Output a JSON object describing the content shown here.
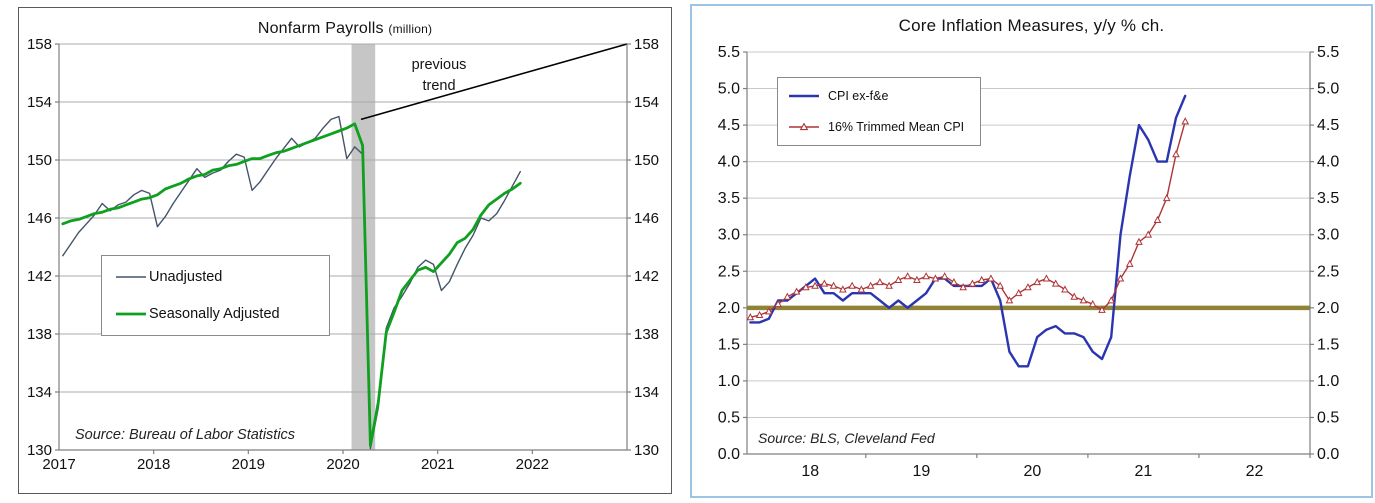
{
  "chart_data": [
    {
      "id": "nonfarm-payrolls",
      "type": "line",
      "title": "Nonfarm Payrolls",
      "title_note": "(million)",
      "source": "Source: Bureau of Labor Statistics",
      "frame_color": "#5a5a5a",
      "ylim": [
        130,
        158
      ],
      "xlim": [
        2017.0,
        2023.0
      ],
      "y_ticks": [
        {
          "v": 158,
          "label": "158"
        },
        {
          "v": 154,
          "label": "154"
        },
        {
          "v": 150,
          "label": "150"
        },
        {
          "v": 146,
          "label": "146"
        },
        {
          "v": 142,
          "label": "142"
        },
        {
          "v": 138,
          "label": "138"
        },
        {
          "v": 134,
          "label": "134"
        },
        {
          "v": 130,
          "label": "130"
        }
      ],
      "x_ticks": [
        2018,
        2019,
        2020,
        2021,
        2022
      ],
      "x_labels": [
        {
          "pos": 2017.0,
          "text": "2017"
        },
        {
          "pos": 2018.0,
          "text": "2018"
        },
        {
          "pos": 2019.0,
          "text": "2019"
        },
        {
          "pos": 2020.0,
          "text": "2020"
        },
        {
          "pos": 2021.0,
          "text": "2021"
        },
        {
          "pos": 2022.0,
          "text": "2022"
        }
      ],
      "recession_band": {
        "x0": 2020.09,
        "x1": 2020.34,
        "color": "#c6c6c6"
      },
      "trend_line": {
        "x0": 2020.19,
        "y0": 152.8,
        "x1": 2023.0,
        "y1": 158.0,
        "color": "#000000",
        "label_line1": "previous",
        "label_line2": "trend"
      },
      "series_start_x": 2017.04,
      "x_step": 0.08333,
      "series": [
        {
          "name": "Unadjusted",
          "color": "#44546a",
          "width": 1.4,
          "marker": "none",
          "values": [
            143.4,
            144.2,
            145.0,
            145.6,
            146.2,
            147.0,
            146.5,
            146.9,
            147.1,
            147.6,
            147.9,
            147.7,
            145.4,
            146.1,
            147.0,
            147.8,
            148.6,
            149.4,
            148.8,
            149.1,
            149.3,
            149.9,
            150.4,
            150.2,
            147.9,
            148.5,
            149.3,
            150.1,
            150.8,
            151.5,
            150.9,
            151.2,
            151.5,
            152.2,
            152.8,
            153.0,
            150.1,
            150.9,
            150.4,
            130.1,
            132.9,
            138.4,
            139.8,
            140.6,
            141.5,
            142.6,
            143.1,
            142.8,
            141.0,
            141.6,
            142.8,
            143.9,
            144.8,
            146.0,
            145.8,
            146.3,
            147.2,
            148.2,
            149.2
          ]
        },
        {
          "name": "Seasonally Adjusted",
          "color": "#0fa01f",
          "width": 2.8,
          "marker": "none",
          "values": [
            145.6,
            145.8,
            145.9,
            146.1,
            146.3,
            146.4,
            146.6,
            146.7,
            146.9,
            147.1,
            147.3,
            147.4,
            147.6,
            148.0,
            148.2,
            148.4,
            148.7,
            148.9,
            149.0,
            149.3,
            149.4,
            149.6,
            149.7,
            149.9,
            150.1,
            150.1,
            150.3,
            150.5,
            150.6,
            150.8,
            151.0,
            151.2,
            151.4,
            151.6,
            151.8,
            152.0,
            152.2,
            152.5,
            151.0,
            130.3,
            133.3,
            138.1,
            139.5,
            141.0,
            141.7,
            142.4,
            142.6,
            142.3,
            142.9,
            143.5,
            144.3,
            144.6,
            145.2,
            146.2,
            146.9,
            147.3,
            147.7,
            148.0,
            148.4
          ]
        }
      ]
    },
    {
      "id": "core-inflation",
      "type": "line",
      "title": "Core Inflation Measures, y/y % ch.",
      "source": "Source: BLS, Cleveland Fed",
      "frame_color": "#9dc3e6",
      "ylim": [
        0.0,
        5.5
      ],
      "xlim": [
        2017.93,
        2023.0
      ],
      "y_ticks": [
        {
          "v": 5.5,
          "label": "5.5"
        },
        {
          "v": 5.0,
          "label": "5.0"
        },
        {
          "v": 4.5,
          "label": "4.5"
        },
        {
          "v": 4.0,
          "label": "4.0"
        },
        {
          "v": 3.5,
          "label": "3.5"
        },
        {
          "v": 3.0,
          "label": "3.0"
        },
        {
          "v": 2.5,
          "label": "2.5"
        },
        {
          "v": 2.0,
          "label": "2.0"
        },
        {
          "v": 1.5,
          "label": "1.5"
        },
        {
          "v": 1.0,
          "label": "1.0"
        },
        {
          "v": 0.5,
          "label": "0.5"
        },
        {
          "v": 0.0,
          "label": "0.0"
        }
      ],
      "x_ticks": [
        2019,
        2020,
        2021,
        2022,
        2023
      ],
      "x_labels": [
        {
          "pos": 2018.5,
          "text": "18"
        },
        {
          "pos": 2019.5,
          "text": "19"
        },
        {
          "pos": 2020.5,
          "text": "20"
        },
        {
          "pos": 2021.5,
          "text": "21"
        },
        {
          "pos": 2022.5,
          "text": "22"
        }
      ],
      "reference_line": {
        "y": 2.0,
        "color": "#8f8435",
        "width": 4.5
      },
      "series_start_x": 2017.96,
      "x_step": 0.08333,
      "series": [
        {
          "name": "CPI ex-f&e",
          "color": "#2b35af",
          "width": 2.4,
          "marker": "none",
          "values": [
            1.8,
            1.8,
            1.85,
            2.1,
            2.1,
            2.2,
            2.3,
            2.4,
            2.2,
            2.2,
            2.1,
            2.2,
            2.2,
            2.2,
            2.1,
            2.0,
            2.1,
            2.0,
            2.1,
            2.2,
            2.4,
            2.4,
            2.3,
            2.3,
            2.3,
            2.3,
            2.4,
            2.1,
            1.4,
            1.2,
            1.2,
            1.6,
            1.7,
            1.75,
            1.65,
            1.65,
            1.6,
            1.4,
            1.3,
            1.6,
            3.0,
            3.8,
            4.5,
            4.3,
            4.0,
            4.0,
            4.6,
            4.9
          ]
        },
        {
          "name": "16% Trimmed Mean CPI",
          "color": "#af3437",
          "width": 1.4,
          "marker": "triangle",
          "values": [
            1.87,
            1.9,
            1.95,
            2.05,
            2.15,
            2.22,
            2.28,
            2.3,
            2.33,
            2.3,
            2.25,
            2.3,
            2.25,
            2.3,
            2.35,
            2.3,
            2.38,
            2.43,
            2.38,
            2.43,
            2.4,
            2.43,
            2.35,
            2.28,
            2.33,
            2.38,
            2.4,
            2.3,
            2.1,
            2.2,
            2.28,
            2.35,
            2.4,
            2.33,
            2.25,
            2.15,
            2.1,
            2.05,
            1.97,
            2.1,
            2.4,
            2.6,
            2.9,
            3.0,
            3.2,
            3.5,
            4.1,
            4.55
          ]
        }
      ]
    }
  ]
}
